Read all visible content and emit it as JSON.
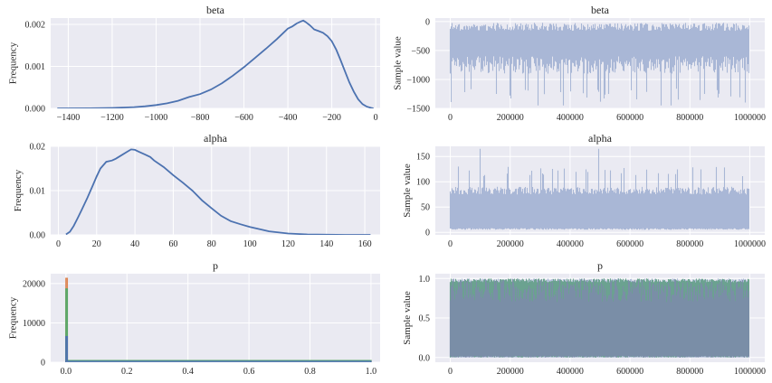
{
  "chart_data": [
    {
      "id": "beta_hist",
      "type": "line",
      "title": "beta",
      "ylabel": "Frequency",
      "xlim": [
        -1480,
        20
      ],
      "ylim": [
        0,
        0.00215
      ],
      "xticks": [
        -1400,
        -1200,
        -1000,
        -800,
        -600,
        -400,
        -200,
        0
      ],
      "xtick_labels": [
        "−1400",
        "−1200",
        "−1000",
        "−800",
        "−600",
        "−400",
        "−200",
        "0"
      ],
      "yticks": [
        0,
        0.001,
        0.002
      ],
      "ytick_labels": [
        "0.000",
        "0.001",
        "0.002"
      ],
      "series": [
        {
          "color": "#4c72b0",
          "x": [
            -1450,
            -1300,
            -1200,
            -1100,
            -1050,
            -1000,
            -950,
            -900,
            -850,
            -800,
            -750,
            -700,
            -650,
            -600,
            -550,
            -500,
            -450,
            -420,
            -400,
            -380,
            -360,
            -340,
            -330,
            -320,
            -300,
            -280,
            -260,
            -240,
            -220,
            -200,
            -180,
            -160,
            -140,
            -120,
            -100,
            -80,
            -60,
            -40,
            -20,
            -10
          ],
          "y": [
            0,
            3e-06,
            1e-05,
            3e-05,
            5e-05,
            8e-05,
            0.00012,
            0.00018,
            0.00027,
            0.00034,
            0.00045,
            0.0006,
            0.00078,
            0.00098,
            0.0012,
            0.00142,
            0.00165,
            0.0018,
            0.0019,
            0.00195,
            0.00202,
            0.00207,
            0.00209,
            0.00206,
            0.00198,
            0.00188,
            0.00184,
            0.0018,
            0.00172,
            0.0016,
            0.0014,
            0.00115,
            0.00088,
            0.00062,
            0.0004,
            0.00022,
            0.0001,
            4e-05,
            1e-05,
            0
          ]
        }
      ],
      "grid": true
    },
    {
      "id": "beta_trace",
      "type": "area",
      "title": "beta",
      "ylabel": "Sample value",
      "xlim": [
        -50000,
        1050000
      ],
      "ylim": [
        -1500,
        60
      ],
      "xticks": [
        0,
        200000,
        400000,
        600000,
        800000,
        1000000
      ],
      "xtick_labels": [
        "0",
        "200000",
        "400000",
        "600000",
        "800000",
        "1000000"
      ],
      "yticks": [
        -1500,
        -1000,
        -500,
        0
      ],
      "ytick_labels": [
        "−1500",
        "−1000",
        "−500",
        "0"
      ],
      "x_range": [
        0,
        1000000
      ],
      "band_upper": -20,
      "band_core_low": -900,
      "spike_low": -1400,
      "spike_extreme_low": -1450,
      "series": [
        {
          "color": "#a9b7d6"
        }
      ],
      "grid": true
    },
    {
      "id": "alpha_hist",
      "type": "line",
      "title": "alpha",
      "ylabel": "Frequency",
      "xlim": [
        -4,
        168
      ],
      "ylim": [
        0,
        0.02
      ],
      "xticks": [
        0,
        20,
        40,
        60,
        80,
        100,
        120,
        140,
        160
      ],
      "xtick_labels": [
        "0",
        "20",
        "40",
        "60",
        "80",
        "100",
        "120",
        "140",
        "160"
      ],
      "yticks": [
        0,
        0.01,
        0.02
      ],
      "ytick_labels": [
        "0.00",
        "0.01",
        "0.02"
      ],
      "series": [
        {
          "color": "#4c72b0",
          "x": [
            4,
            6,
            8,
            10,
            12,
            15,
            18,
            20,
            22,
            25,
            28,
            30,
            33,
            36,
            38,
            40,
            42,
            45,
            48,
            50,
            55,
            60,
            65,
            70,
            75,
            80,
            85,
            90,
            95,
            100,
            110,
            120,
            130,
            140,
            150,
            163
          ],
          "y": [
            0.0001,
            0.0007,
            0.002,
            0.0037,
            0.0055,
            0.0082,
            0.0112,
            0.0132,
            0.015,
            0.0165,
            0.0168,
            0.0172,
            0.018,
            0.0188,
            0.0193,
            0.0192,
            0.0188,
            0.0182,
            0.0176,
            0.0168,
            0.0153,
            0.0135,
            0.0118,
            0.01,
            0.0078,
            0.006,
            0.0043,
            0.0031,
            0.0024,
            0.0018,
            0.0008,
            0.0003,
            0.0001,
            4e-05,
            1e-05,
            0
          ]
        }
      ],
      "grid": true
    },
    {
      "id": "alpha_trace",
      "type": "area",
      "title": "alpha",
      "ylabel": "Sample value",
      "xlim": [
        -50000,
        1050000
      ],
      "ylim": [
        -5,
        170
      ],
      "xticks": [
        0,
        200000,
        400000,
        600000,
        800000,
        1000000
      ],
      "xtick_labels": [
        "0",
        "200000",
        "400000",
        "600000",
        "800000",
        "1000000"
      ],
      "yticks": [
        0,
        50,
        100,
        150
      ],
      "ytick_labels": [
        "0",
        "50",
        "100",
        "150"
      ],
      "x_range": [
        0,
        1000000
      ],
      "band_upper": 90,
      "band_core_low": 5,
      "spike_high": 130,
      "spike_extreme_high": 165,
      "series": [
        {
          "color": "#a9b7d6"
        }
      ],
      "grid": true
    },
    {
      "id": "p_hist",
      "type": "line",
      "title": "p",
      "ylabel": "Frequency",
      "xlim": [
        -0.05,
        1.03
      ],
      "ylim": [
        0,
        22500
      ],
      "xticks": [
        0,
        0.2,
        0.4,
        0.6,
        0.8,
        1.0
      ],
      "xtick_labels": [
        "0.0",
        "0.2",
        "0.4",
        "0.6",
        "0.8",
        "1.0"
      ],
      "yticks": [
        0,
        10000,
        20000
      ],
      "ytick_labels": [
        "0",
        "10000",
        "20000"
      ],
      "series": [
        {
          "color": "#dd8452",
          "spike_x": 0.0,
          "spike_y": 21300,
          "floor_y": 400
        },
        {
          "color": "#55a868",
          "spike_x": 0.0,
          "spike_y": 18600,
          "floor_y": 400
        },
        {
          "color": "#4c72b0",
          "spike_x": 0.0,
          "spike_y": 6500,
          "floor_y": 200
        }
      ],
      "grid": true
    },
    {
      "id": "p_trace",
      "type": "area",
      "title": "p",
      "ylabel": "Sample value",
      "xlim": [
        -50000,
        1050000
      ],
      "ylim": [
        -0.06,
        1.06
      ],
      "xticks": [
        0,
        200000,
        400000,
        600000,
        800000,
        1000000
      ],
      "xtick_labels": [
        "0",
        "200000",
        "400000",
        "600000",
        "800000",
        "1000000"
      ],
      "yticks": [
        0,
        0.5,
        1.0
      ],
      "ytick_labels": [
        "0.0",
        "0.5",
        "1.0"
      ],
      "x_range": [
        0,
        1000000
      ],
      "band_upper": 1.0,
      "band_core_low": 0.0,
      "series": [
        {
          "color": "#a9b7d6"
        },
        {
          "color": "#5e9c82"
        },
        {
          "color": "#7d8bab"
        }
      ],
      "grid": true
    }
  ]
}
